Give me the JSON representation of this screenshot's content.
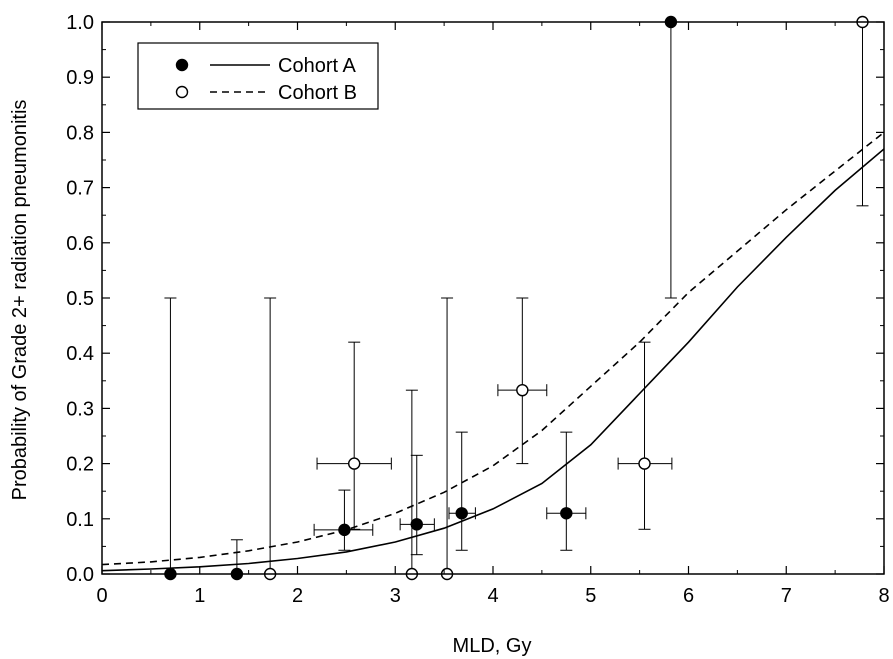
{
  "chart_data": {
    "type": "scatter",
    "xlabel": "MLD, Gy",
    "ylabel": "Probability of Grade 2+ radiation pneumonitis",
    "xlim": [
      0,
      8
    ],
    "ylim": [
      0,
      1.0
    ],
    "x_ticks": [
      "0",
      "1",
      "2",
      "3",
      "4",
      "5",
      "6",
      "7",
      "8"
    ],
    "y_ticks": [
      "0.0",
      "0.1",
      "0.2",
      "0.3",
      "0.4",
      "0.5",
      "0.6",
      "0.7",
      "0.8",
      "0.9",
      "1.0"
    ],
    "grid": false,
    "legend_position": "top-left",
    "series": [
      {
        "name": "Cohort A",
        "marker": "filled-circle",
        "line_style": "solid",
        "points": [
          {
            "x": 0.7,
            "y": 0.0,
            "y_low": 0.0,
            "y_high": 0.5
          },
          {
            "x": 1.38,
            "y": 0.0,
            "y_low": 0.0,
            "y_high": 0.062
          },
          {
            "x": 2.48,
            "y": 0.08,
            "y_low": 0.043,
            "y_high": 0.152,
            "x_low": 2.17,
            "x_high": 2.77
          },
          {
            "x": 3.22,
            "y": 0.09,
            "y_low": 0.035,
            "y_high": 0.215,
            "x_low": 3.05,
            "x_high": 3.4
          },
          {
            "x": 3.68,
            "y": 0.11,
            "y_low": 0.043,
            "y_high": 0.257,
            "x_low": 3.55,
            "x_high": 3.82
          },
          {
            "x": 4.75,
            "y": 0.11,
            "y_low": 0.043,
            "y_high": 0.257,
            "x_low": 4.55,
            "x_high": 4.95
          },
          {
            "x": 5.82,
            "y": 1.0,
            "y_low": 0.5,
            "y_high": 1.0
          }
        ],
        "fit": {
          "x": [
            0,
            0.5,
            1,
            1.5,
            2,
            2.5,
            3,
            3.5,
            4,
            4.5,
            5,
            5.5,
            6,
            6.5,
            7,
            7.5,
            8
          ],
          "y": [
            0.006,
            0.009,
            0.013,
            0.019,
            0.028,
            0.04,
            0.058,
            0.083,
            0.118,
            0.164,
            0.234,
            0.327,
            0.42,
            0.52,
            0.61,
            0.695,
            0.77
          ]
        }
      },
      {
        "name": "Cohort B",
        "marker": "open-circle",
        "line_style": "dashed",
        "points": [
          {
            "x": 1.72,
            "y": 0.0,
            "y_low": 0.0,
            "y_high": 0.5
          },
          {
            "x": 2.58,
            "y": 0.2,
            "y_low": 0.081,
            "y_high": 0.42,
            "x_low": 2.2,
            "x_high": 2.96
          },
          {
            "x": 3.17,
            "y": 0.0,
            "y_low": 0.0,
            "y_high": 0.333
          },
          {
            "x": 3.53,
            "y": 0.0,
            "y_low": 0.0,
            "y_high": 0.5
          },
          {
            "x": 4.3,
            "y": 0.333,
            "y_low": 0.2,
            "y_high": 0.5,
            "x_low": 4.05,
            "x_high": 4.55
          },
          {
            "x": 5.55,
            "y": 0.2,
            "y_low": 0.081,
            "y_high": 0.42,
            "x_low": 5.28,
            "x_high": 5.83
          },
          {
            "x": 7.78,
            "y": 1.0,
            "y_low": 0.667,
            "y_high": 1.0
          }
        ],
        "fit": {
          "x": [
            0,
            0.5,
            1,
            1.5,
            2,
            2.5,
            3,
            3.5,
            4,
            4.5,
            5,
            5.5,
            6,
            6.5,
            7,
            7.5,
            8
          ],
          "y": [
            0.017,
            0.022,
            0.03,
            0.042,
            0.058,
            0.08,
            0.11,
            0.148,
            0.196,
            0.26,
            0.34,
            0.42,
            0.51,
            0.585,
            0.66,
            0.73,
            0.8
          ]
        }
      }
    ]
  }
}
